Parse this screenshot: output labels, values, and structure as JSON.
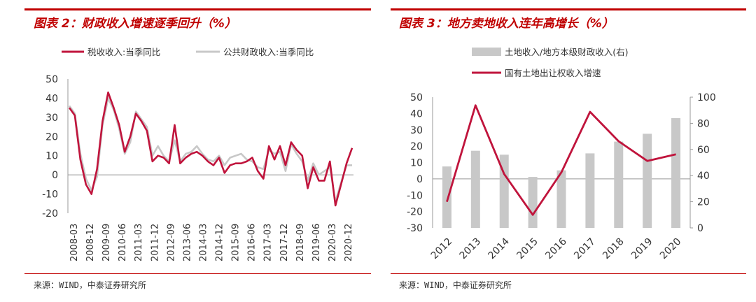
{
  "colors": {
    "accent": "#c00000",
    "series_red": "#c0143c",
    "series_gray": "#c8c8c8",
    "bar_gray": "#c8c8c8"
  },
  "left": {
    "title": "图表 2：财政收入增速逐季回升（%）",
    "source": "来源：WIND，中泰证券研究所",
    "chart_data": {
      "type": "line",
      "title": "图表 2：财政收入增速逐季回升（%）",
      "ylim": [
        -20,
        50
      ],
      "yticks": [
        "50",
        "40",
        "30",
        "20",
        "10",
        "0",
        "-10",
        "-20"
      ],
      "tick_labels": [
        "2008-03",
        "2008-12",
        "2009-09",
        "2010-06",
        "2011-03",
        "2011-12",
        "2012-09",
        "2013-06",
        "2014-03",
        "2014-12",
        "2015-09",
        "2016-06",
        "2017-03",
        "2017-12",
        "2018-09",
        "2019-06",
        "2020-03",
        "2020-12"
      ],
      "series": [
        {
          "name": "税收收入:当季同比",
          "values": [
            35,
            31,
            8,
            -5,
            -10,
            3,
            28,
            43,
            35,
            26,
            12,
            20,
            32,
            28,
            23,
            7,
            10,
            9,
            6,
            26,
            6,
            9,
            11,
            12,
            10,
            7,
            5,
            9,
            1,
            5,
            6,
            6,
            7,
            9,
            2,
            -2,
            15,
            8,
            15,
            5,
            17,
            13,
            10,
            -7,
            4,
            -3,
            -3,
            7,
            -16,
            -5,
            6,
            14
          ]
        },
        {
          "name": "公共财政收入:当季同比",
          "values": [
            36,
            32,
            11,
            -2,
            -8,
            -1,
            26,
            40,
            34,
            24,
            11,
            17,
            33,
            29,
            25,
            10,
            15,
            10,
            7,
            18,
            7,
            11,
            12,
            15,
            11,
            8,
            7,
            10,
            5,
            9,
            10,
            11,
            8,
            7,
            4,
            3,
            13,
            11,
            12,
            2,
            16,
            11,
            7,
            -3,
            6,
            0,
            2,
            4,
            -14,
            -4,
            5,
            5
          ]
        }
      ]
    }
  },
  "right": {
    "title": "图表 3：地方卖地收入连年高增长（%）",
    "source": "来源：WIND，中泰证券研究所",
    "chart_data": {
      "type": "bar",
      "title": "图表 3：地方卖地收入连年高增长（%）",
      "categories": [
        "2012",
        "2013",
        "2014",
        "2015",
        "2016",
        "2017",
        "2018",
        "2019",
        "2020"
      ],
      "yticks_left": [
        "50",
        "40",
        "30",
        "20",
        "10",
        "0",
        "-10",
        "-20",
        "-30"
      ],
      "yticks_right": [
        "100",
        "80",
        "60",
        "40",
        "20",
        "0"
      ],
      "ylim_left": [
        -30,
        50
      ],
      "ylim_right": [
        0,
        100
      ],
      "series": [
        {
          "name": "土地收入/地方本级财政收入(右)",
          "type": "bar",
          "axis": "right",
          "values": [
            47,
            59,
            56,
            39,
            44,
            57,
            66,
            72,
            84
          ]
        },
        {
          "name": "国有土地出让权收入增速",
          "type": "line",
          "axis": "left",
          "values": [
            -14,
            45,
            3,
            -22,
            4,
            41,
            23,
            11,
            15
          ]
        }
      ]
    }
  }
}
